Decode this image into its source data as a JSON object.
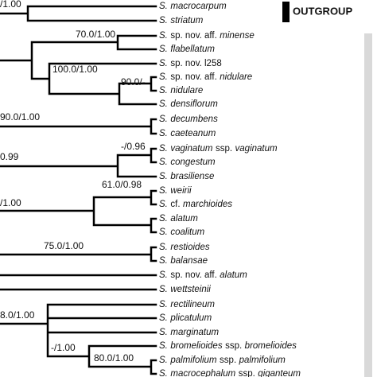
{
  "outgroup_label": "OUTGROUP",
  "support_values": [
    "/1.00",
    "70.0/1.00",
    "100.0/1.00",
    "90.0/-",
    "90.0/1.00",
    "0.99",
    "-/0.96",
    "/1.00",
    "61.0/0.98",
    "75.0/1.00",
    "8.0/1.00",
    "-/1.00",
    "80.0/1.00"
  ],
  "taxa": [
    {
      "parts": [
        {
          "text": "S.",
          "italic": true
        },
        {
          "text": "macrocarpum",
          "italic": true
        }
      ]
    },
    {
      "parts": [
        {
          "text": "S.",
          "italic": true
        },
        {
          "text": "striatum",
          "italic": true
        }
      ]
    },
    {
      "parts": [
        {
          "text": "S.",
          "italic": true
        },
        {
          "text": "sp. nov. aff.",
          "italic": false
        },
        {
          "text": "minense",
          "italic": true
        }
      ]
    },
    {
      "parts": [
        {
          "text": "S.",
          "italic": true
        },
        {
          "text": "flabellatum",
          "italic": true
        }
      ]
    },
    {
      "parts": [
        {
          "text": "S.",
          "italic": true
        },
        {
          "text": "sp. nov. l258",
          "italic": false
        }
      ]
    },
    {
      "parts": [
        {
          "text": "S.",
          "italic": true
        },
        {
          "text": "sp. nov. aff.",
          "italic": false
        },
        {
          "text": "nidulare",
          "italic": true
        }
      ]
    },
    {
      "parts": [
        {
          "text": "S.",
          "italic": true
        },
        {
          "text": "nidulare",
          "italic": true
        }
      ]
    },
    {
      "parts": [
        {
          "text": "S.",
          "italic": true
        },
        {
          "text": "densiflorum",
          "italic": true
        }
      ]
    },
    {
      "parts": [
        {
          "text": "S.",
          "italic": true
        },
        {
          "text": "decumbens",
          "italic": true
        }
      ]
    },
    {
      "parts": [
        {
          "text": "S.",
          "italic": true
        },
        {
          "text": "caeteanum",
          "italic": true
        }
      ]
    },
    {
      "parts": [
        {
          "text": "S.",
          "italic": true
        },
        {
          "text": "vaginatum",
          "italic": true
        },
        {
          "text": "ssp.",
          "italic": false
        },
        {
          "text": "vaginatum",
          "italic": true
        }
      ]
    },
    {
      "parts": [
        {
          "text": "S.",
          "italic": true
        },
        {
          "text": "congestum",
          "italic": true
        }
      ]
    },
    {
      "parts": [
        {
          "text": "S.",
          "italic": true
        },
        {
          "text": "brasiliense",
          "italic": true
        }
      ]
    },
    {
      "parts": [
        {
          "text": "S.",
          "italic": true
        },
        {
          "text": "weirii",
          "italic": true
        }
      ]
    },
    {
      "parts": [
        {
          "text": "S.",
          "italic": true
        },
        {
          "text": "cf.",
          "italic": false
        },
        {
          "text": "marchioides",
          "italic": true
        }
      ]
    },
    {
      "parts": [
        {
          "text": "S.",
          "italic": true
        },
        {
          "text": "alatum",
          "italic": true
        }
      ]
    },
    {
      "parts": [
        {
          "text": "S.",
          "italic": true
        },
        {
          "text": "coalitum",
          "italic": true
        }
      ]
    },
    {
      "parts": [
        {
          "text": "S.",
          "italic": true
        },
        {
          "text": "restioides",
          "italic": true
        }
      ]
    },
    {
      "parts": [
        {
          "text": "S.",
          "italic": true
        },
        {
          "text": "balansae",
          "italic": true
        }
      ]
    },
    {
      "parts": [
        {
          "text": "S.",
          "italic": true
        },
        {
          "text": "sp. nov. aff.",
          "italic": false
        },
        {
          "text": "alatum",
          "italic": true
        }
      ]
    },
    {
      "parts": [
        {
          "text": "S.",
          "italic": true
        },
        {
          "text": "wettsteinii",
          "italic": true
        }
      ]
    },
    {
      "parts": [
        {
          "text": "S.",
          "italic": true
        },
        {
          "text": "rectilineum",
          "italic": true
        }
      ]
    },
    {
      "parts": [
        {
          "text": "S.",
          "italic": true
        },
        {
          "text": "plicatulum",
          "italic": true
        }
      ]
    },
    {
      "parts": [
        {
          "text": "S.",
          "italic": true
        },
        {
          "text": "marginatum",
          "italic": true
        }
      ]
    },
    {
      "parts": [
        {
          "text": "S.",
          "italic": true
        },
        {
          "text": "bromelioides",
          "italic": true
        },
        {
          "text": "ssp.",
          "italic": false
        },
        {
          "text": "bromelioides",
          "italic": true
        }
      ]
    },
    {
      "parts": [
        {
          "text": "S.",
          "italic": true
        },
        {
          "text": "palmifolium",
          "italic": true
        },
        {
          "text": "ssp.",
          "italic": false
        },
        {
          "text": "palmifolium",
          "italic": true
        }
      ]
    },
    {
      "parts": [
        {
          "text": "S.",
          "italic": true
        },
        {
          "text": "macrocephalum",
          "italic": true
        },
        {
          "text": "ssp.",
          "italic": false
        },
        {
          "text": "giganteum",
          "italic": true
        }
      ]
    }
  ]
}
